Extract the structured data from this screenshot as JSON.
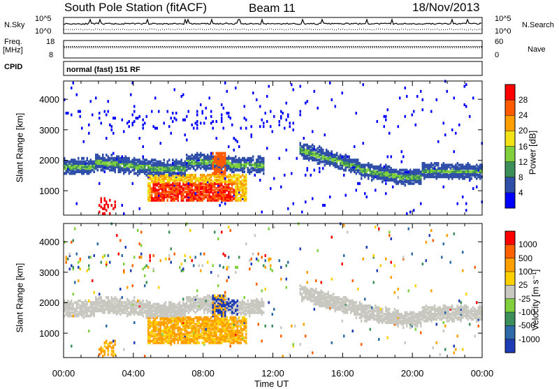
{
  "header": {
    "station": "South Pole Station (fitACF)",
    "beam": "Beam 11",
    "date": "18/Nov/2013"
  },
  "top_panels": {
    "nsky_label": "N.Sky",
    "nsky_ticks": [
      "10^5",
      "10^0"
    ],
    "nsearch_label": "N.Search",
    "nsearch_ticks": [
      "10^5",
      "10^0"
    ],
    "freq_label_line1": "Freq.",
    "freq_label_line2": "[MHz]",
    "freq_ticks": [
      "18",
      "8"
    ],
    "nave_label": "Nave",
    "nave_ticks": [
      "60",
      "0"
    ],
    "cpid_label": "CPID",
    "cpid_text": "normal (fast) 151 RF"
  },
  "chart_data": [
    {
      "type": "heatmap",
      "title": "",
      "ylabel": "Slant Range [km]",
      "xlabel": "",
      "x_ticks": [
        "00:00",
        "04:00",
        "08:00",
        "12:00",
        "16:00",
        "20:00",
        "00:00"
      ],
      "y_ticks": [
        1000,
        2000,
        3000,
        4000
      ],
      "ylim": [
        200,
        4600
      ],
      "xlim_hours": [
        0,
        24
      ],
      "colorbar": {
        "label": "Power [dB]",
        "ticks": [
          "28",
          "24",
          "20",
          "16",
          "12",
          "8",
          "4"
        ],
        "colors": [
          "#0000ff",
          "#2f4fa8",
          "#3c8f5a",
          "#7fd03c",
          "#f2e216",
          "#ff9f00",
          "#ff5a00",
          "#ff0000"
        ]
      }
    },
    {
      "type": "heatmap",
      "title": "",
      "ylabel": "Slant Range [km]",
      "xlabel": "Time UT",
      "x_ticks": [
        "00:00",
        "04:00",
        "08:00",
        "12:00",
        "16:00",
        "20:00",
        "00:00"
      ],
      "y_ticks": [
        1000,
        2000,
        3000,
        4000
      ],
      "ylim": [
        200,
        4600
      ],
      "xlim_hours": [
        0,
        24
      ],
      "colorbar": {
        "label": "Velocity [m s⁻¹]",
        "ticks": [
          "1000",
          "500",
          "100",
          "25",
          "-25",
          "-100",
          "-500",
          "-1000"
        ],
        "colors": [
          "#1e3cb4",
          "#2f6aa8",
          "#3c8f5a",
          "#7fd03c",
          "#c8c8c0",
          "#ffd000",
          "#ff9f00",
          "#ff6000",
          "#ff0000"
        ]
      }
    }
  ]
}
